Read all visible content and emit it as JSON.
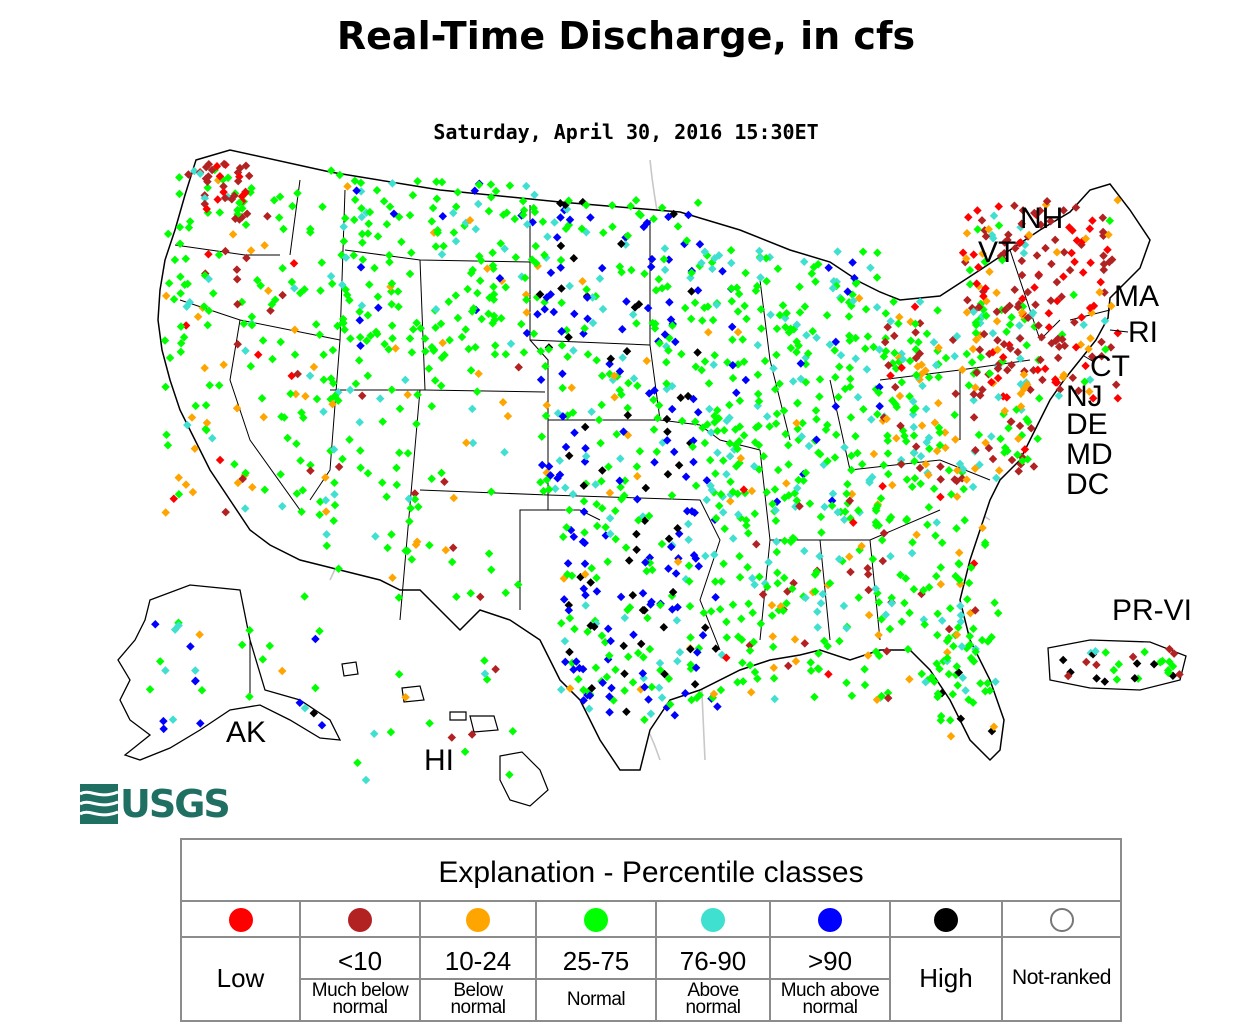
{
  "title": "Real-Time Discharge, in cfs",
  "timestamp": "Saturday, April 30, 2016 15:30ET",
  "map_labels": {
    "nh": "NH",
    "vt": "VT",
    "ma": "MA",
    "ri": "RI",
    "ct": "CT",
    "nj": "NJ",
    "de": "DE",
    "md": "MD",
    "dc": "DC",
    "pr_vi": "PR-VI",
    "ak": "AK",
    "hi": "HI"
  },
  "logo_text": "USGS",
  "legend": {
    "title": "Explanation - Percentile classes",
    "classes": [
      {
        "color": "#ff0000",
        "range": "Low",
        "description": ""
      },
      {
        "color": "#b22222",
        "range": "<10",
        "description": "Much below normal"
      },
      {
        "color": "#ffa500",
        "range": "10-24",
        "description": "Below normal"
      },
      {
        "color": "#00ff00",
        "range": "25-75",
        "description": "Normal"
      },
      {
        "color": "#40e0d0",
        "range": "76-90",
        "description": "Above normal"
      },
      {
        "color": "#0000ff",
        "range": ">90",
        "description": "Much above normal"
      },
      {
        "color": "#000000",
        "range": "High",
        "description": ""
      },
      {
        "color": "#ffffff",
        "range": "Not-ranked",
        "description": ""
      }
    ],
    "desc_lines": {
      "much_below": [
        "Much below",
        "normal"
      ],
      "below": [
        "Below",
        "normal"
      ],
      "above": [
        "Above",
        "normal"
      ],
      "much_above": [
        "Much above",
        "normal"
      ]
    }
  },
  "colors": {
    "low": "#ff0000",
    "much_below": "#b22222",
    "below": "#ffa500",
    "normal": "#00ff00",
    "above": "#40e0d0",
    "much_above": "#0000ff",
    "high": "#000000",
    "state_line": "#000000",
    "river": "#c8c8c8",
    "usgs_green": "#1f6f63"
  }
}
